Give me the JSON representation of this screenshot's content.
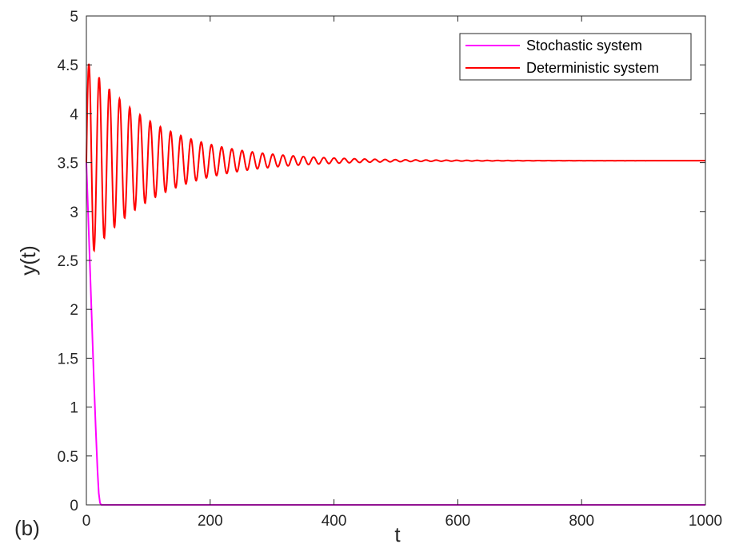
{
  "chart_data": {
    "type": "line",
    "panel_label": "(b)",
    "xlabel": "t",
    "ylabel": "y(t)",
    "xlim": [
      0,
      1000
    ],
    "ylim": [
      0,
      5
    ],
    "xticks": [
      "0",
      "200",
      "400",
      "600",
      "800",
      "1000"
    ],
    "yticks": [
      "0",
      "0.5",
      "1",
      "1.5",
      "2",
      "2.5",
      "3",
      "3.5",
      "4",
      "4.5",
      "5"
    ],
    "grid": false,
    "legend_position": "top-right",
    "series": [
      {
        "name": "Stochastic system",
        "color": "#ff00ff",
        "x": [
          0,
          3,
          6,
          9,
          12,
          15,
          18,
          20,
          22,
          24,
          1000
        ],
        "y": [
          3.5,
          2.95,
          2.4,
          1.85,
          1.3,
          0.8,
          0.35,
          0.12,
          0.02,
          0,
          0
        ]
      },
      {
        "name": "Deterministic system",
        "color": "#ff0000",
        "description_of_shape": "damped oscillation",
        "equilibrium": 3.52,
        "initial_value": 3.5,
        "first_peak": 4.5,
        "first_trough": 2.82,
        "period": 16.5,
        "decay_time": 110
      }
    ]
  }
}
